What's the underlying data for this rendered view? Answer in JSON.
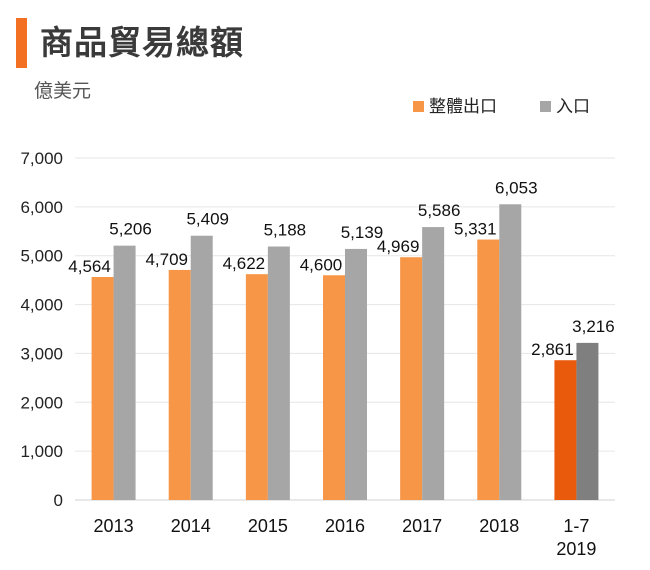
{
  "header": {
    "title": "商品貿易總額",
    "unit": "億美元"
  },
  "chart_data": {
    "type": "bar",
    "categories": [
      "2013",
      "2014",
      "2015",
      "2016",
      "2017",
      "2018",
      "1-7\n2019"
    ],
    "series": [
      {
        "name": "整體出口",
        "values": [
          4564,
          4709,
          4622,
          4600,
          4969,
          5331,
          2861
        ],
        "labels": [
          "4,564",
          "4,709",
          "4,622",
          "4,600",
          "4,969",
          "5,331",
          "2,861"
        ],
        "color": "#f79646",
        "highlight_color": "#ea5a0c"
      },
      {
        "name": "入口",
        "values": [
          5206,
          5409,
          5188,
          5139,
          5586,
          6053,
          3216
        ],
        "labels": [
          "5,206",
          "5,409",
          "5,188",
          "5,139",
          "5,586",
          "6,053",
          "3,216"
        ],
        "color": "#a6a6a6",
        "highlight_color": "#7f7f7f"
      }
    ],
    "highlight_index": 6,
    "ylim": [
      0,
      7000
    ],
    "yticks": [
      0,
      1000,
      2000,
      3000,
      4000,
      5000,
      6000,
      7000
    ],
    "ytick_labels": [
      "0",
      "1,000",
      "2,000",
      "3,000",
      "4,000",
      "5,000",
      "6,000",
      "7,000"
    ],
    "grid": true,
    "legend_position": "top-right"
  }
}
